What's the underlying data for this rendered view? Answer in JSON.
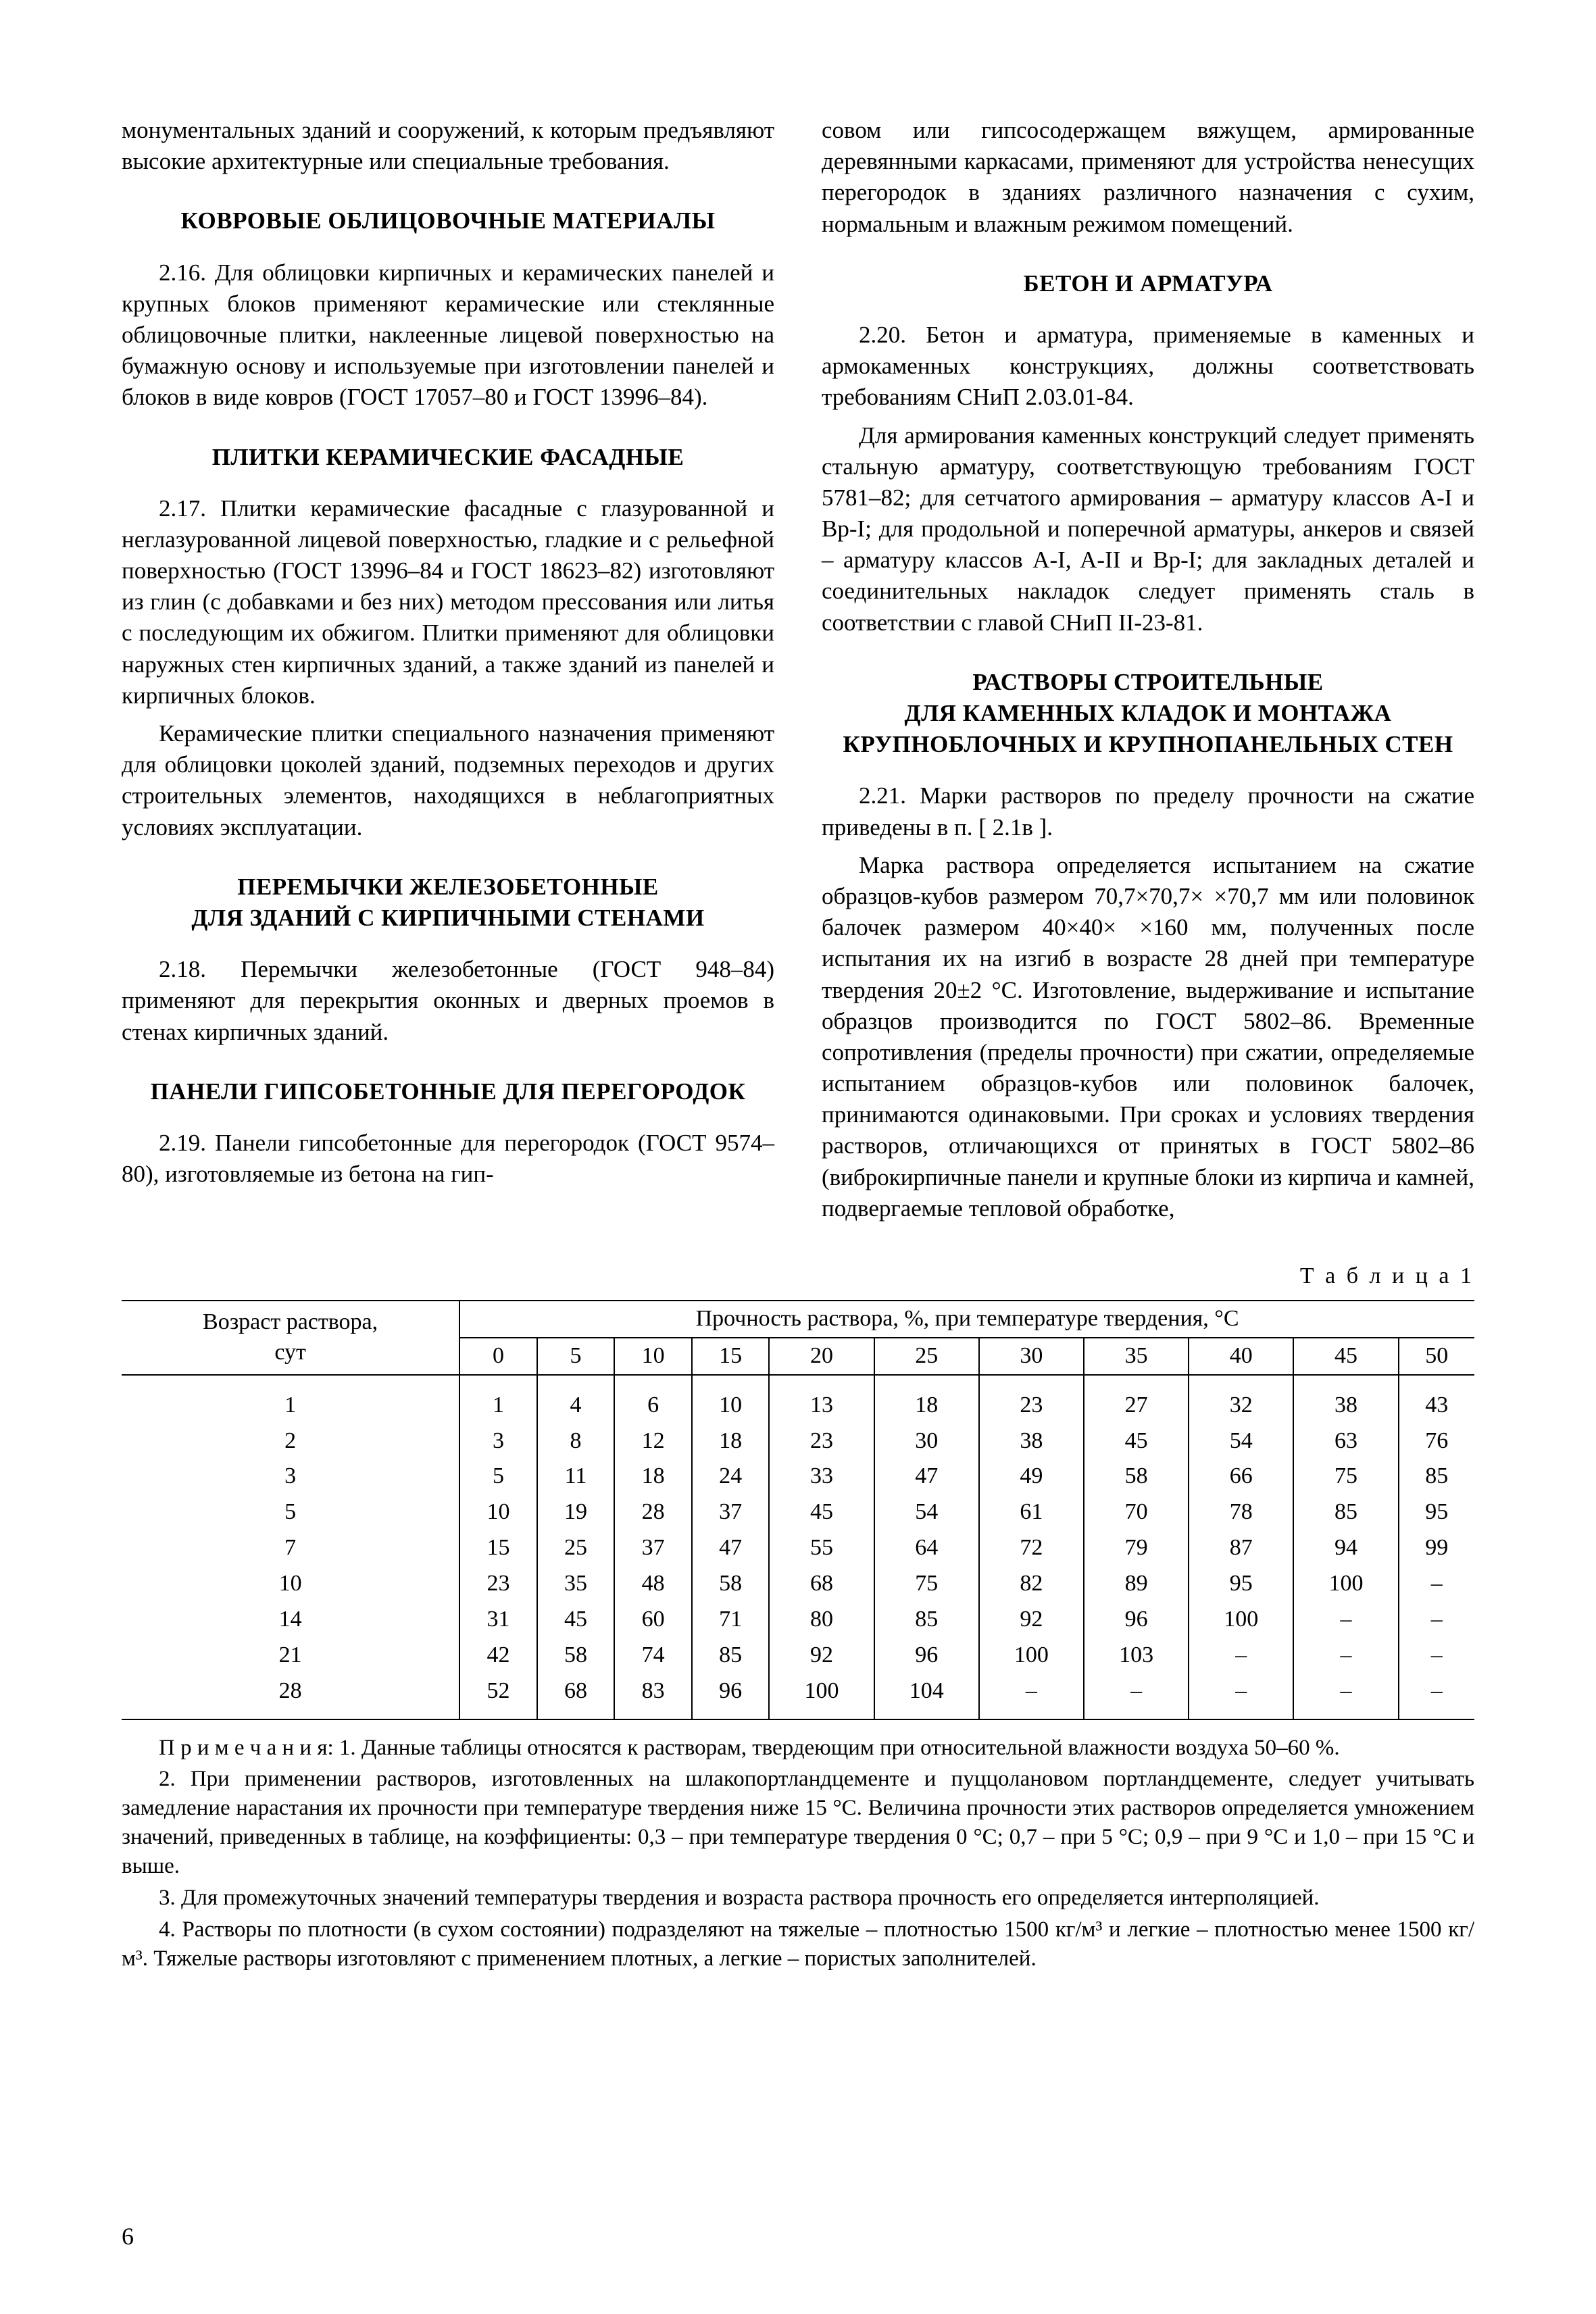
{
  "col_left": {
    "p_intro": "монументальных зданий и сооружений, к которым предъявляют высокие архитектурные или специальные требования.",
    "h_kovrovye": "КОВРОВЫЕ ОБЛИЦОВОЧНЫЕ МАТЕРИАЛЫ",
    "p_216": "2.16. Для облицовки кирпичных и керамических панелей и крупных блоков применяют керамические или стеклянные облицовочные плитки, наклеенные лицевой поверхностью на бумажную основу и используемые при изготовлении панелей и блоков в виде ковров (ГОСТ 17057–80 и ГОСТ 13996–84).",
    "h_plitki": "ПЛИТКИ КЕРАМИЧЕСКИЕ ФАСАДНЫЕ",
    "p_217a": "2.17. Плитки керамические фасадные с глазурованной и неглазурованной лицевой поверхностью, гладкие и с рельефной поверхностью (ГОСТ 13996–84 и ГОСТ 18623–82) изготовляют из глин (с добавками и без них) методом прессования или литья с последующим их обжигом. Плитки применяют для облицовки наружных стен кирпичных зданий, а также зданий из панелей и кирпичных блоков.",
    "p_217b": "Керамические плитки специального назначения применяют для облицовки цоколей зданий, подземных переходов и других строительных элементов, находящихся в неблагоприятных условиях эксплуатации.",
    "h_peremychki_l1": "ПЕРЕМЫЧКИ ЖЕЛЕЗОБЕТОННЫЕ",
    "h_peremychki_l2": "ДЛЯ ЗДАНИЙ С КИРПИЧНЫМИ СТЕНАМИ",
    "p_218": "2.18. Перемычки железобетонные (ГОСТ 948–84) применяют для перекрытия оконных и дверных проемов в стенах кирпичных зданий.",
    "h_paneli": "ПАНЕЛИ ГИПСОБЕТОННЫЕ ДЛЯ ПЕРЕГОРОДОК",
    "p_219": "2.19. Панели гипсобетонные для перегородок (ГОСТ 9574–80), изготовляемые из бетона на гип-"
  },
  "col_right": {
    "p_219b": "совом или гипсосодержащем вяжущем, армированные деревянными каркасами, применяют для устройства ненесущих перегородок в зданиях различного назначения с сухим, нормальным и влажным режимом помещений.",
    "h_beton": "БЕТОН И АРМАТУРА",
    "p_220a": "2.20. Бетон и арматура, применяемые в каменных и армокаменных конструкциях, должны соответствовать требованиям СНиП 2.03.01-84.",
    "p_220b": "Для армирования каменных конструкций следует применять стальную арматуру, соответствующую требованиям ГОСТ 5781–82; для сетчатого армирования – арматуру классов A-I и Вр-I; для продольной и поперечной арматуры, анкеров и связей – арматуру классов A-I, A-II и Вр-I; для закладных деталей и соединительных накладок следует применять сталь в соответствии с главой СНиП II-23-81.",
    "h_rastvory_l1": "РАСТВОРЫ СТРОИТЕЛЬНЫЕ",
    "h_rastvory_l2": "ДЛЯ КАМЕННЫХ КЛАДОК И МОНТАЖА",
    "h_rastvory_l3": "КРУПНОБЛОЧНЫХ И КРУПНОПАНЕЛЬНЫХ СТЕН",
    "p_221a": "2.21. Марки растворов по пределу прочности на сжатие  приведены в п. [ 2.1в ].",
    "p_221b": "Марка раствора определяется испытанием на сжатие образцов-кубов размером 70,7×70,7× ×70,7 мм или половинок балочек размером 40×40× ×160 мм, полученных после испытания их на изгиб в возрасте 28 дней при температуре твердения 20±2 °С. Изготовление, выдерживание и испытание образцов производится по ГОСТ 5802–86. Временные сопротивления (пределы прочности) при сжатии, определяемые испытанием образцов-кубов или половинок балочек, принимаются одинаковыми. При сроках и условиях твердения растворов, отличающихся от принятых в ГОСТ 5802–86 (виброкирпичные панели и крупные блоки из кирпича и камней, подвергаемые тепловой обработке,"
  },
  "table": {
    "label": "Т а б л и ц а 1",
    "row_header": "Возраст раствора,\nсут",
    "col_header": "Прочность раствора, %, при температуре твердения, °С",
    "temps": [
      "0",
      "5",
      "10",
      "15",
      "20",
      "25",
      "30",
      "35",
      "40",
      "45",
      "50"
    ],
    "ages": [
      "1",
      "2",
      "3",
      "5",
      "7",
      "10",
      "14",
      "21",
      "28"
    ],
    "rows": [
      [
        "1",
        "4",
        "6",
        "10",
        "13",
        "18",
        "23",
        "27",
        "32",
        "38",
        "43"
      ],
      [
        "3",
        "8",
        "12",
        "18",
        "23",
        "30",
        "38",
        "45",
        "54",
        "63",
        "76"
      ],
      [
        "5",
        "11",
        "18",
        "24",
        "33",
        "47",
        "49",
        "58",
        "66",
        "75",
        "85"
      ],
      [
        "10",
        "19",
        "28",
        "37",
        "45",
        "54",
        "61",
        "70",
        "78",
        "85",
        "95"
      ],
      [
        "15",
        "25",
        "37",
        "47",
        "55",
        "64",
        "72",
        "79",
        "87",
        "94",
        "99"
      ],
      [
        "23",
        "35",
        "48",
        "58",
        "68",
        "75",
        "82",
        "89",
        "95",
        "100",
        "–"
      ],
      [
        "31",
        "45",
        "60",
        "71",
        "80",
        "85",
        "92",
        "96",
        "100",
        "–",
        "–"
      ],
      [
        "42",
        "58",
        "74",
        "85",
        "92",
        "96",
        "100",
        "103",
        "–",
        "–",
        "–"
      ],
      [
        "52",
        "68",
        "83",
        "96",
        "100",
        "104",
        "–",
        "–",
        "–",
        "–",
        "–"
      ]
    ]
  },
  "notes": {
    "n1": "П р и м е ч а н и я: 1. Данные таблицы относятся к растворам, твердеющим при относительной влажности воздуха 50–60 %.",
    "n2": "2. При применении растворов, изготовленных на шлакопортландцементе и пуццолановом портландцементе, следует учитывать замедление нарастания их прочности при температуре твердения ниже 15 °С. Величина прочности этих растворов определяется умножением значений, приведенных в таблице, на коэффициенты: 0,3 – при температуре твердения 0 °С; 0,7 – при 5 °С; 0,9 – при 9 °С и 1,0 – при 15 °С и выше.",
    "n3": "3. Для промежуточных значений температуры твердения и возраста раствора прочность его определяется интерполяцией.",
    "n4": "4. Растворы по плотности (в сухом состоянии) подразделяют на тяжелые – плотностью 1500 кг/м³ и легкие – плотностью менее 1500 кг/м³. Тяжелые растворы изготовляют с применением плотных, а легкие – пористых заполнителей."
  },
  "page_number": "6"
}
